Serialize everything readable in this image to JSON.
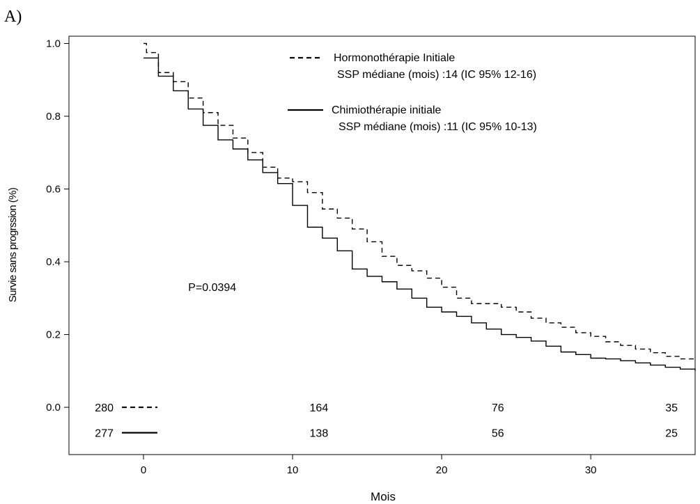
{
  "panel_label": "A)",
  "chart_data": {
    "type": "line",
    "title": "",
    "xlabel": "Mois",
    "ylabel": "Survie sans progrssion (%)",
    "xlim": [
      -5,
      37
    ],
    "ylim": [
      -0.13,
      1.02
    ],
    "x_ticks": [
      0,
      10,
      20,
      30
    ],
    "y_ticks": [
      0.0,
      0.2,
      0.4,
      0.6,
      0.8,
      1.0
    ],
    "y_tick_labels": [
      "0.0",
      "0.2",
      "0.4",
      "0.6",
      "0.8",
      "1.0"
    ],
    "grid": false,
    "legend_position": "top-center",
    "series": [
      {
        "name": "Hormonothérapie Initiale",
        "subtitle": "SSP médiane (mois) :14 (IC 95% 12-16)",
        "line_style": "dashed",
        "x": [
          0,
          0.2,
          1,
          2,
          3,
          4,
          5,
          6,
          7,
          8,
          9,
          10,
          11,
          12,
          13,
          14,
          15,
          16,
          17,
          18,
          19,
          20,
          21,
          22,
          24,
          25,
          26,
          27,
          28,
          29,
          30,
          31,
          32,
          33,
          34,
          35,
          36,
          37
        ],
        "y": [
          1.0,
          0.975,
          0.92,
          0.895,
          0.85,
          0.81,
          0.775,
          0.74,
          0.7,
          0.66,
          0.63,
          0.62,
          0.59,
          0.545,
          0.52,
          0.49,
          0.455,
          0.415,
          0.39,
          0.375,
          0.355,
          0.33,
          0.3,
          0.285,
          0.275,
          0.262,
          0.245,
          0.232,
          0.22,
          0.205,
          0.195,
          0.18,
          0.17,
          0.16,
          0.15,
          0.14,
          0.133,
          0.13
        ]
      },
      {
        "name": "Chimiothérapie initiale",
        "subtitle": "SSP médiane (mois) :11 (IC 95% 10-13)",
        "line_style": "solid",
        "x": [
          0,
          1,
          2,
          3,
          4,
          5,
          6,
          7,
          8,
          9,
          10,
          11,
          12,
          13,
          14,
          15,
          16,
          17,
          18,
          19,
          20,
          21,
          22,
          23,
          24,
          25,
          26,
          27,
          28,
          29,
          30,
          31,
          32,
          33,
          34,
          35,
          36,
          37
        ],
        "y": [
          0.96,
          0.91,
          0.87,
          0.82,
          0.775,
          0.735,
          0.71,
          0.68,
          0.645,
          0.615,
          0.555,
          0.495,
          0.465,
          0.43,
          0.38,
          0.36,
          0.345,
          0.325,
          0.3,
          0.275,
          0.262,
          0.25,
          0.232,
          0.215,
          0.2,
          0.192,
          0.182,
          0.168,
          0.152,
          0.145,
          0.135,
          0.133,
          0.128,
          0.122,
          0.116,
          0.11,
          0.105,
          0.1
        ]
      }
    ],
    "annotations": [
      {
        "text": "P=0.0394",
        "x": 3,
        "y": 0.32
      }
    ],
    "risk_table": {
      "time_points": [
        0,
        12,
        24,
        36
      ],
      "rows": [
        {
          "series": "Hormonothérapie Initiale",
          "line_style": "dashed",
          "y": 0.0,
          "counts": [
            "280",
            "164",
            "76",
            "35"
          ]
        },
        {
          "series": "Chimiothérapie initiale",
          "line_style": "solid",
          "y": -0.07,
          "counts": [
            "277",
            "138",
            "56",
            "25"
          ]
        }
      ]
    }
  }
}
